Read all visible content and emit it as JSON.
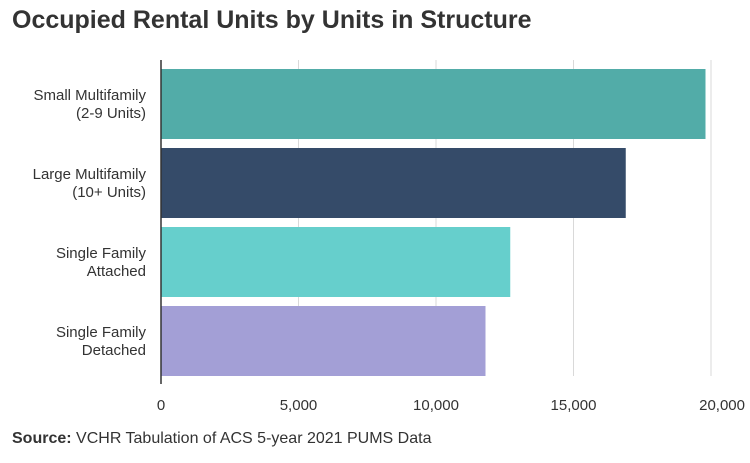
{
  "chart_data": {
    "type": "bar",
    "orientation": "horizontal",
    "title": "Occupied Rental Units by Units in Structure",
    "categories": [
      [
        "Small Multifamily",
        "(2-9 Units)"
      ],
      [
        "Large Multifamily",
        "(10+ Units)"
      ],
      [
        "Single Family",
        "Attached"
      ],
      [
        "Single Family",
        "Detached"
      ]
    ],
    "values": [
      19800,
      16900,
      12700,
      11800
    ],
    "colors": [
      "#52aca8",
      "#354b69",
      "#66cfcc",
      "#a39fd6"
    ],
    "xlim": [
      0,
      20000
    ],
    "xticks": [
      0,
      5000,
      10000,
      15000,
      20000
    ],
    "xtick_labels": [
      "0",
      "5,000",
      "10,000",
      "15,000",
      "20,000"
    ],
    "grid": "vertical",
    "legend": "none"
  },
  "source": {
    "label": "Source:",
    "text": "VCHR Tabulation of ACS 5-year 2021 PUMS Data"
  }
}
